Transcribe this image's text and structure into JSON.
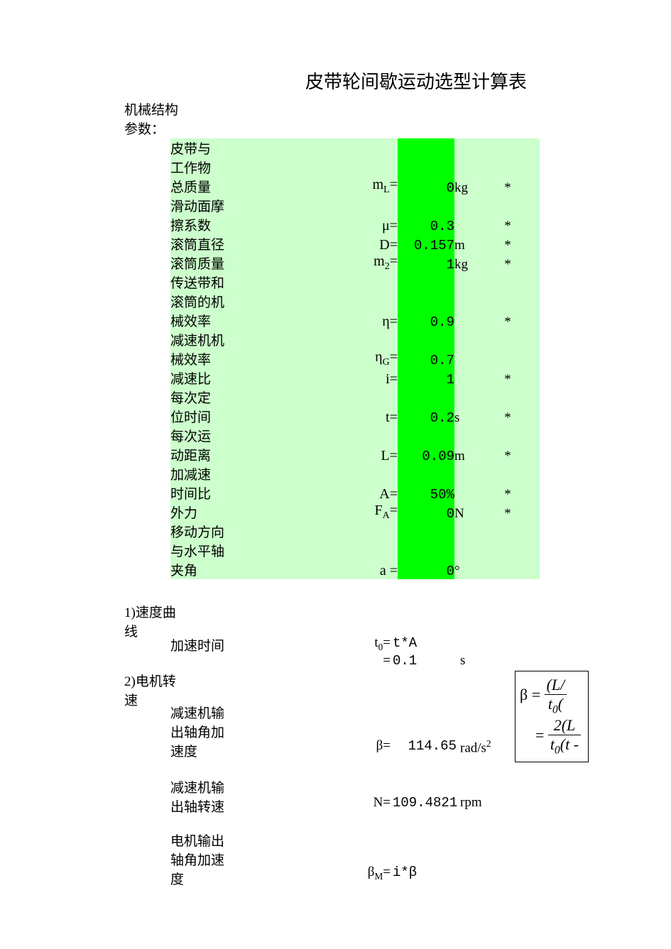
{
  "title": "皮带轮间歇运动选型计算表",
  "section_params": "机械结构参数：",
  "params": [
    {
      "label": "皮带与工作物总质量",
      "sym": "m<sub class='sub'>L</sub>=",
      "val": "0",
      "unit": "kg",
      "star": "*",
      "lines": 3
    },
    {
      "label": "滑动面摩擦系数",
      "sym": "μ=",
      "val": "0.3",
      "unit": "",
      "star": "*",
      "lines": 2
    },
    {
      "label": "滚筒直径",
      "sym": "D=",
      "val": "0.157",
      "unit": "m",
      "star": "*",
      "lines": 1
    },
    {
      "label": "滚筒质量",
      "sym": "m<sub class='sub'>2</sub>=",
      "val": "1",
      "unit": "kg",
      "star": "*",
      "lines": 1
    },
    {
      "label": "传送带和滚筒的机械效率",
      "sym": "η=",
      "val": "0.9",
      "unit": "",
      "star": "*",
      "lines": 3
    },
    {
      "label": "减速机机械效率",
      "sym": "η<sub class='sub'>G</sub>=",
      "val": "0.7",
      "unit": "",
      "star": "",
      "lines": 2
    },
    {
      "label": "减速比",
      "sym": "i=",
      "val": "1",
      "unit": "",
      "star": "*",
      "lines": 1
    },
    {
      "label": "每次定位时间",
      "sym": "t=",
      "val": "0.2",
      "unit": "s",
      "star": "*",
      "lines": 2
    },
    {
      "label": "每次运动距离",
      "sym": "L=",
      "val": "0.09",
      "unit": "m",
      "star": "*",
      "lines": 2
    },
    {
      "label": "加减速时间比",
      "sym": "A=",
      "val": "50%",
      "unit": "",
      "star": "*",
      "lines": 2
    },
    {
      "label": "外力",
      "sym": "F<sub class='sub'>A</sub>=",
      "val": "0",
      "unit": "N",
      "star": "*",
      "lines": 1
    },
    {
      "label": "移动方向与水平轴夹角",
      "sym": "a =",
      "val": "0",
      "unit": "°",
      "star": "",
      "lines": 3
    }
  ],
  "sec1": "1)速度曲线",
  "sec2": "2)电机转速",
  "calc": {
    "accel_time_label": "加速时间",
    "accel_time_sym": "t<sub class='sub'>0</sub>=",
    "accel_time_expr": "t*A",
    "accel_time_eq": "=",
    "accel_time_val": "0.1",
    "accel_time_unit": "s",
    "beta_label": "减速机输出轴角加速度",
    "beta_sym": "β=",
    "beta_val": "114.65",
    "beta_unit": "rad/s<sup class='sup'>2</sup>",
    "N_label": "减速机输出轴转速",
    "N_sym": "N=",
    "N_val": "109.4821",
    "N_unit": "rpm",
    "betaM_label": "电机输出轴角加速度",
    "betaM_sym": "β<sub class='sub'>M</sub>=",
    "betaM_expr": "i*β"
  },
  "formula": {
    "beta": "β =",
    "num1": "(L/",
    "den1": "t<sub class='sub'>0</sub>(",
    "eq": "=",
    "num2": "2(L",
    "den2": "t<sub class='sub'>0</sub>(t -"
  },
  "colors": {
    "light_green": "#ccffcc",
    "bright_green": "#00ff00",
    "background": "#ffffff"
  }
}
